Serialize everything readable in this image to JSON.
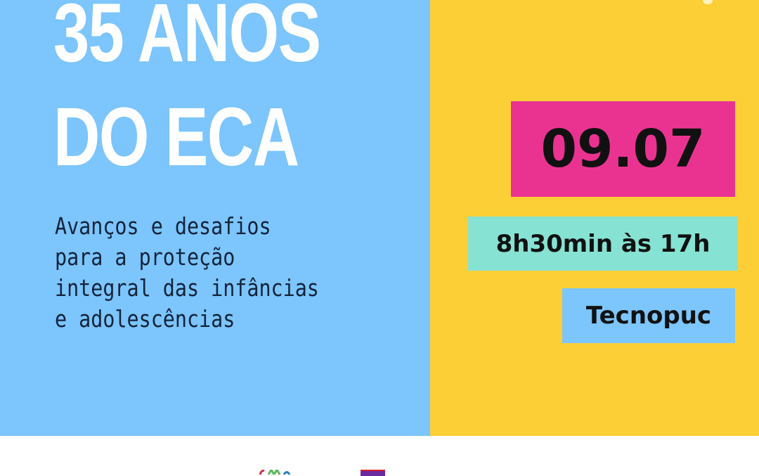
{
  "poster": {
    "title_line1": "35 ANOS",
    "title_line2": "DO ECA",
    "subtitle_lines": [
      "Avanços e desafios",
      "para a proteção",
      "integral das infâncias",
      "e adolescências"
    ],
    "date": "09.07",
    "time": "8h30min às 17h",
    "location": "Tecnopuc"
  },
  "colors": {
    "left_panel": "#7cc5fd",
    "right_panel": "#fdcf36",
    "date_box": "#ea3391",
    "time_box": "#86e2d3",
    "location_box": "#7cc5fd"
  }
}
